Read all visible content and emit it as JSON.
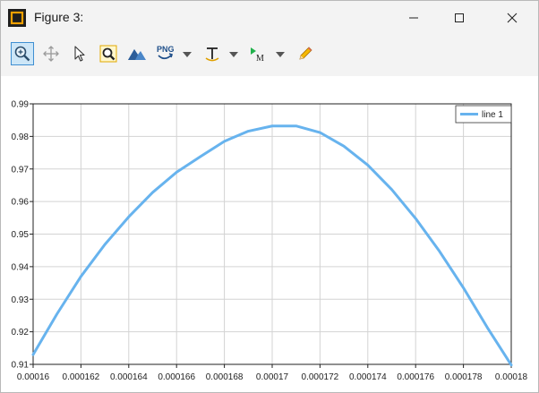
{
  "window": {
    "title": "Figure 3:",
    "icons": {
      "app": "figure-app-icon",
      "minimize": "minimize-icon",
      "maximize": "maximize-icon",
      "close": "close-icon"
    }
  },
  "toolbar": {
    "tools": [
      {
        "name": "zoom-in-icon",
        "active": true
      },
      {
        "name": "pan-icon",
        "active": false
      },
      {
        "name": "pointer-icon",
        "active": false
      },
      {
        "name": "zoom-fit-icon",
        "active": false
      },
      {
        "name": "surface-icon",
        "active": false
      },
      {
        "name": "png-export-icon",
        "label": "PNG",
        "dropdown": true
      },
      {
        "name": "text-tool-icon",
        "dropdown": true
      },
      {
        "name": "marker-tool-icon",
        "label": "M",
        "dropdown": true
      },
      {
        "name": "pencil-icon",
        "active": false
      }
    ]
  },
  "colors": {
    "line": "#67b3ee",
    "grid": "#d3d3d3",
    "axis": "#222222",
    "active_tool": "#cde6f7"
  },
  "chart_data": {
    "type": "line",
    "legend_position": "top-right",
    "grid": true,
    "xlim": [
      0.00016,
      0.00018
    ],
    "ylim": [
      0.91,
      0.99
    ],
    "xticks": [
      "0.00016",
      "0.000162",
      "0.000164",
      "0.000166",
      "0.000168",
      "0.00017",
      "0.000172",
      "0.000174",
      "0.000176",
      "0.000178",
      "0.00018"
    ],
    "yticks": [
      "0.91",
      "0.92",
      "0.93",
      "0.94",
      "0.95",
      "0.96",
      "0.97",
      "0.98",
      "0.99"
    ],
    "series": [
      {
        "name": "line 1",
        "x": [
          0.00016,
          0.000161,
          0.000162,
          0.000163,
          0.000164,
          0.000165,
          0.000166,
          0.000167,
          0.000168,
          0.000169,
          0.00017,
          0.000171,
          0.000172,
          0.000173,
          0.000174,
          0.000175,
          0.000176,
          0.000177,
          0.000178,
          0.000179,
          0.00018
        ],
        "y": [
          0.913,
          0.9255,
          0.937,
          0.9468,
          0.9553,
          0.9628,
          0.969,
          0.9738,
          0.9785,
          0.9816,
          0.9832,
          0.9832,
          0.9812,
          0.977,
          0.9712,
          0.9637,
          0.9548,
          0.9447,
          0.9335,
          0.9213,
          0.9098
        ]
      }
    ]
  }
}
